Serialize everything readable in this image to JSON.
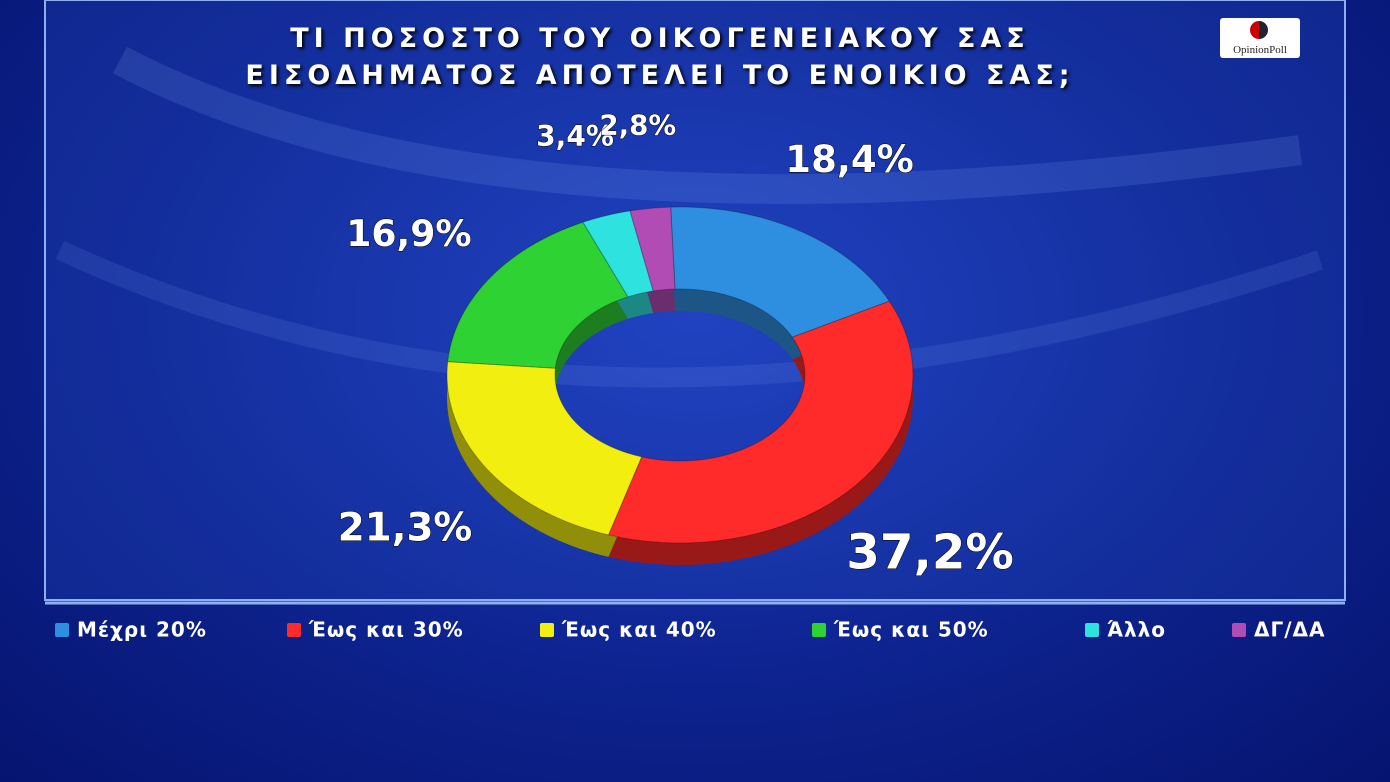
{
  "chart_data": {
    "type": "donut",
    "title": "ΤΙ ΠΟΣΟΣΤΟ ΤΟΥ ΟΙΚΟΓΕΝΕΙΑΚΟΥ ΣΑΣ ΕΙΣΟΔΗΜΑΤΟΣ ΑΠΟΤΕΛΕΙ ΤΟ ΕΝΟΙΚΙΟ ΣΑΣ;",
    "logo": "OpinionPoll",
    "categories": [
      "Μέχρι 20%",
      "Έως και 30%",
      "Έως και 40%",
      "Έως και 50%",
      "Άλλο",
      "ΔΓ/ΔΑ"
    ],
    "values": [
      18.4,
      37.2,
      21.3,
      16.9,
      3.4,
      2.8
    ],
    "value_labels": [
      "18,4%",
      "37,2%",
      "21,3%",
      "16,9%",
      "3,4%",
      "2,8%"
    ],
    "colors": [
      "#2e8ee0",
      "#ff2a2a",
      "#f2ee10",
      "#2ed232",
      "#2ee2e0",
      "#b04cb4"
    ],
    "legend": "bottom"
  }
}
